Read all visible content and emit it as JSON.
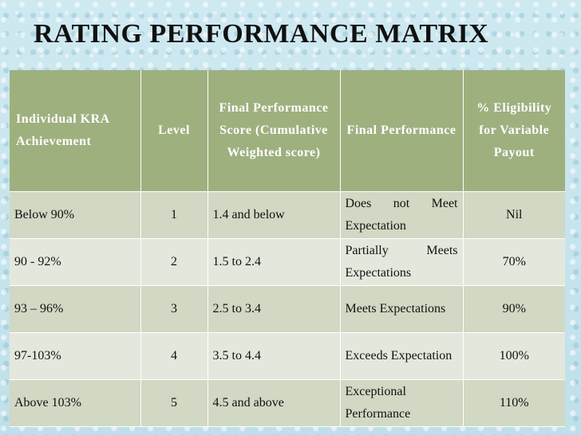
{
  "title": "RATING PERFORMANCE MATRIX",
  "headers": {
    "kra": "Individual KRA Achievement",
    "level": "Level",
    "score": "Final Performance Score (Cumulative Weighted score)",
    "performance": "Final Performance",
    "payout": "% Eligibility for Variable Payout"
  },
  "rows": [
    {
      "kra": "Below 90%",
      "level": "1",
      "score": "1.4  and below",
      "performance": "Does not Meet Expectation",
      "payout": "Nil"
    },
    {
      "kra": "90 - 92%",
      "level": "2",
      "score": "1.5 to 2.4",
      "performance": "Partially Meets Expectations",
      "payout": "70%"
    },
    {
      "kra": "93 – 96%",
      "level": "3",
      "score": "2.5  to 3.4",
      "performance": "Meets Expectations",
      "payout": "90%"
    },
    {
      "kra": "97-103%",
      "level": "4",
      "score": "3.5 to 4.4",
      "performance": "Exceeds Expectation",
      "payout": "100%"
    },
    {
      "kra": "Above 103%",
      "level": "5",
      "score": "4.5 and above",
      "performance": "Exceptional Performance",
      "payout": "110%"
    }
  ],
  "colors": {
    "background": "#c9e6ee",
    "header": "#9fb07f",
    "row_dark": "#d1d8c3",
    "row_light": "#e4e8dc"
  }
}
